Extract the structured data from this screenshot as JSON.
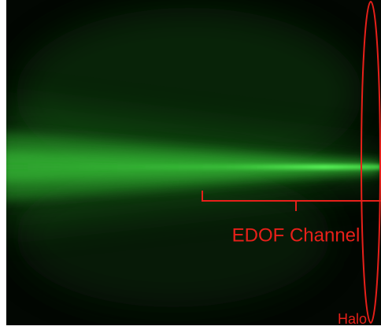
{
  "annotations": {
    "channel_label": "EDOF Channel",
    "halo_label": "Halo"
  }
}
